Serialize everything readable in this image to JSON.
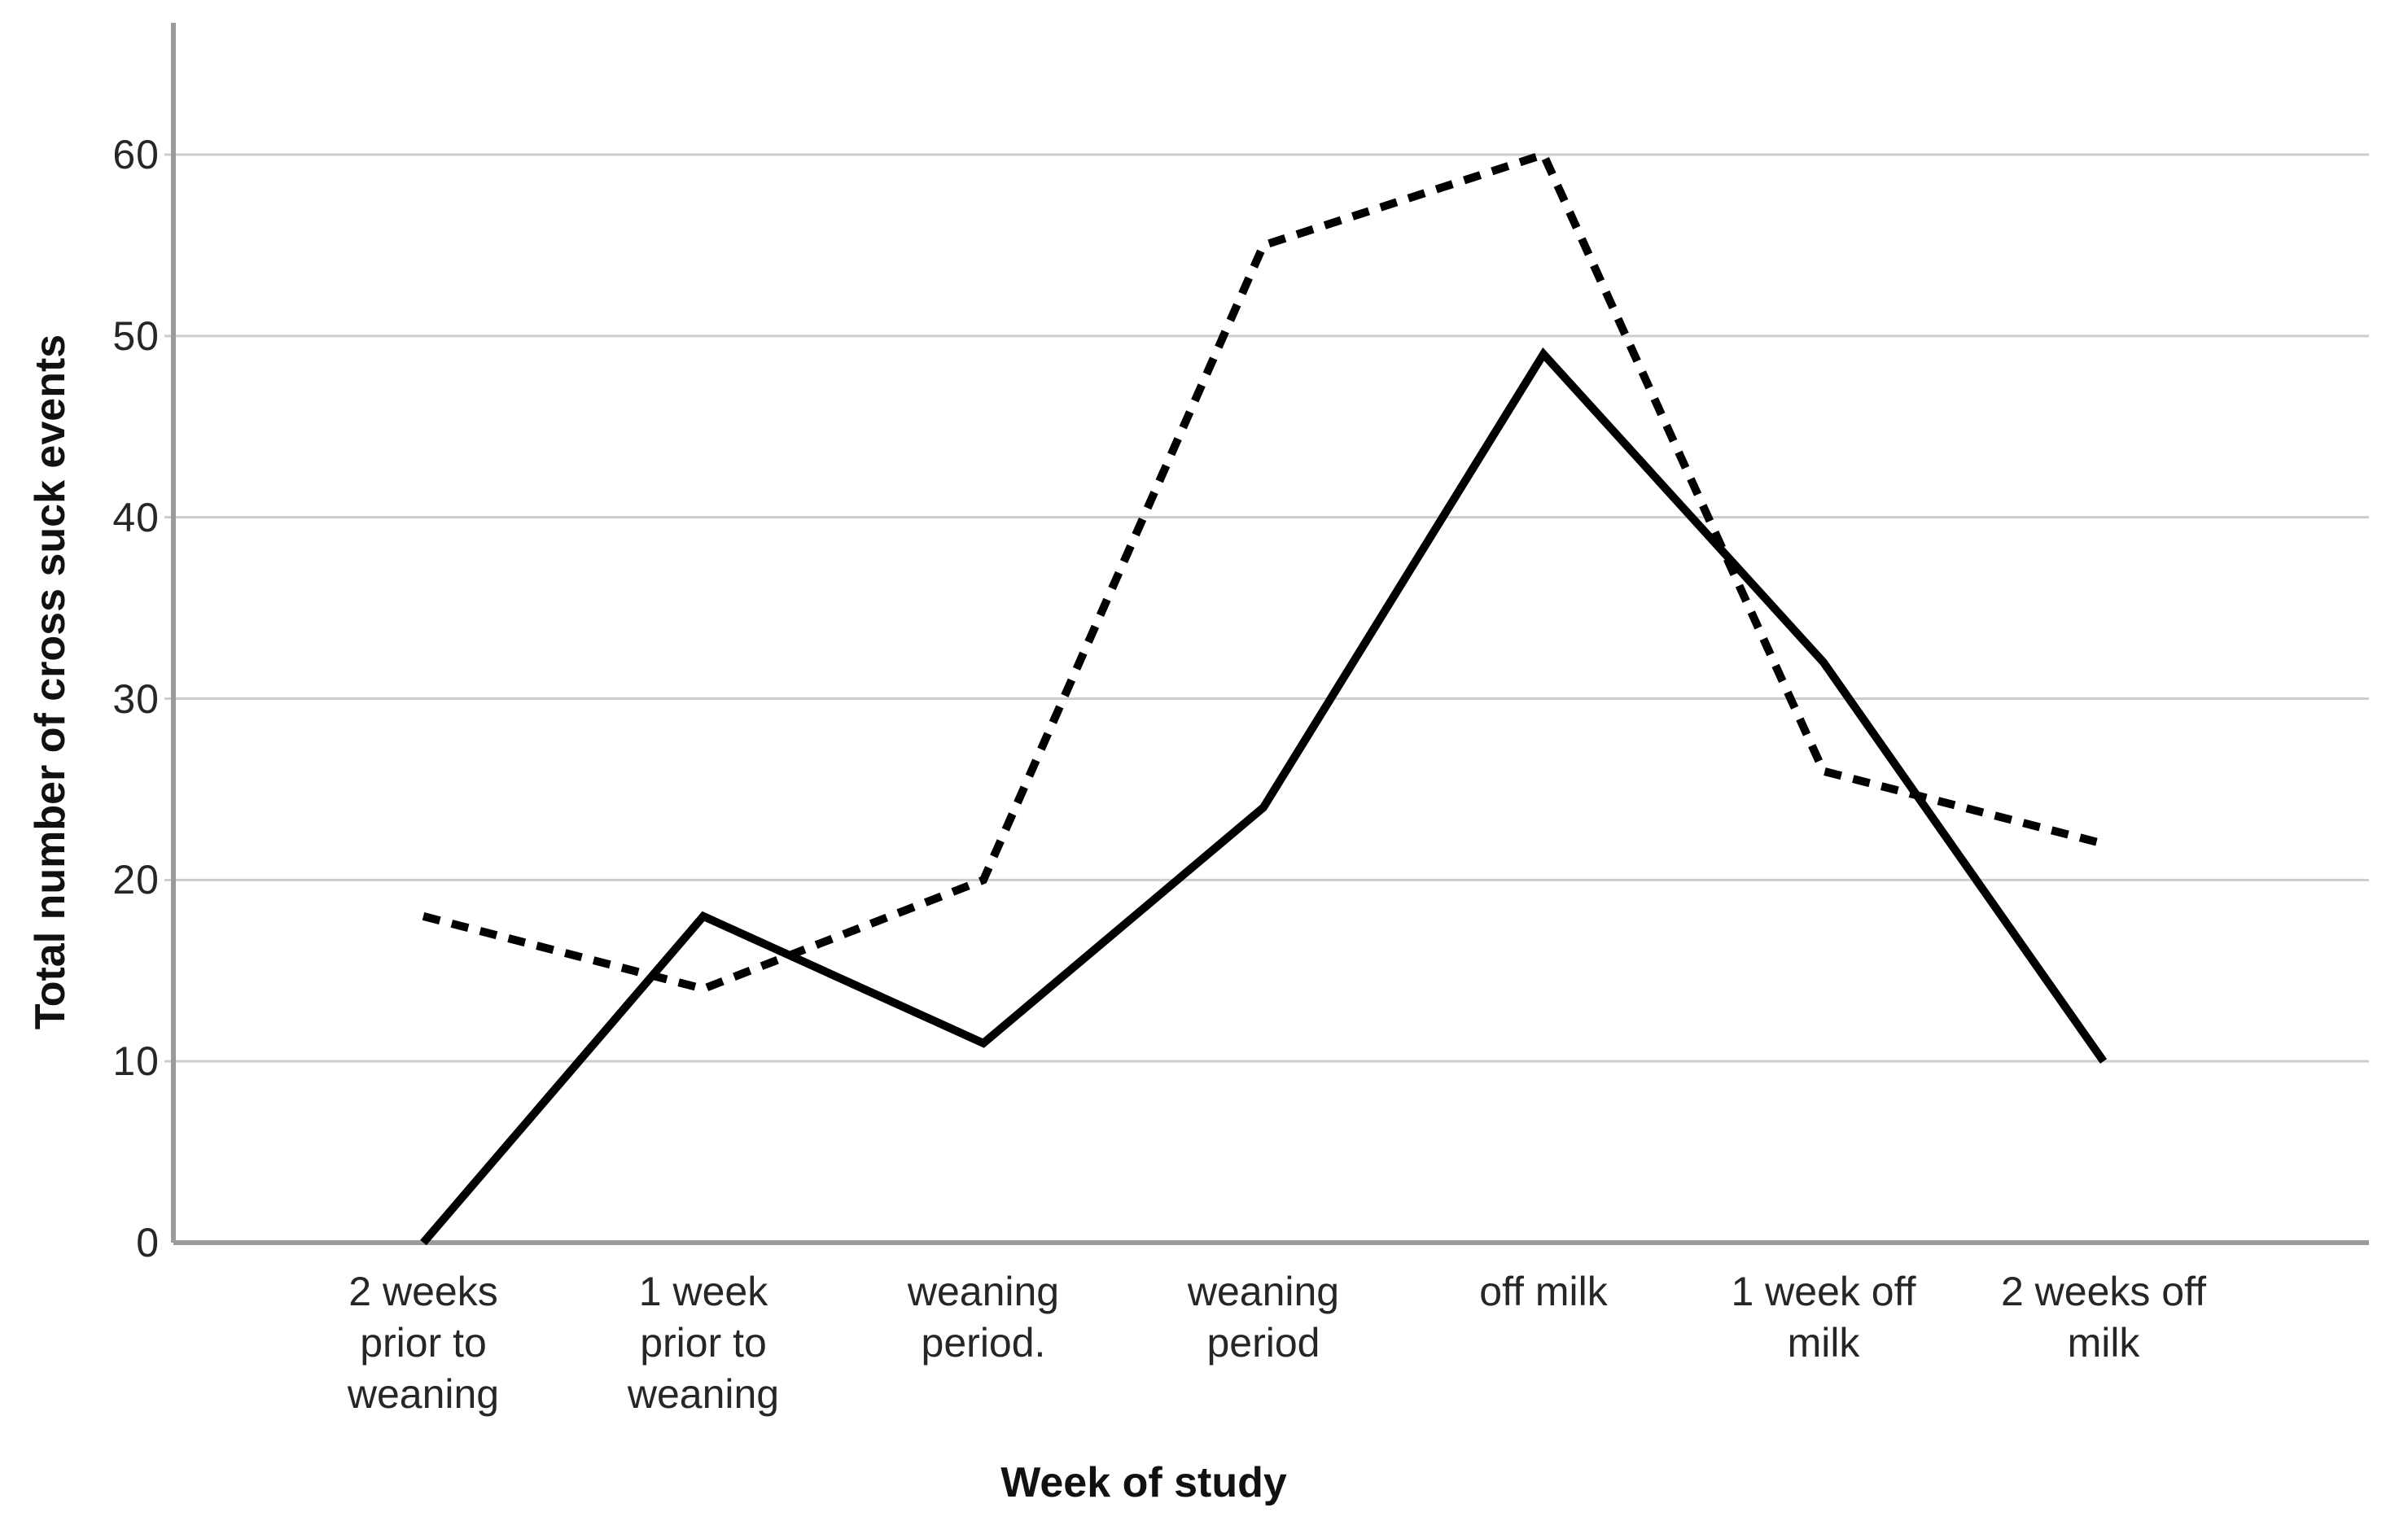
{
  "chart_data": {
    "type": "line",
    "title": "",
    "xlabel": "Week of study",
    "ylabel": "Total number of cross suck events",
    "categories": [
      "2 weeks prior to weaning",
      "1 week prior to weaning",
      "weaning period.",
      "weaning period",
      "off milk",
      "1 week off milk",
      "2 weeks off milk"
    ],
    "category_tick_lines": [
      [
        "2 weeks",
        "prior to",
        "weaning"
      ],
      [
        "1 week",
        "prior to",
        "weaning"
      ],
      [
        "weaning",
        "period."
      ],
      [
        "weaning",
        "period"
      ],
      [
        "off milk"
      ],
      [
        "1 week off",
        "milk"
      ],
      [
        "2 weeks off",
        "milk"
      ]
    ],
    "series": [
      {
        "name": "solid-line-group",
        "style": "solid",
        "color": "#000000",
        "values": [
          0,
          18,
          11,
          24,
          49,
          32,
          10
        ]
      },
      {
        "name": "dashed-line-group",
        "style": "dashed",
        "color": "#000000",
        "values": [
          18,
          14,
          20,
          55,
          60,
          26,
          22
        ]
      }
    ],
    "y_ticks": [
      0,
      10,
      20,
      30,
      40,
      50,
      60
    ],
    "y_tick_labels": [
      "0",
      "10",
      "20",
      "30",
      "40",
      "50",
      "60"
    ],
    "ylim": [
      0,
      67
    ],
    "grid": "horizontal-gridlines-on",
    "legend": "none",
    "colors": {
      "line": "#000000",
      "axis": "#9b9b9b",
      "gridline": "#cdcdcd",
      "tick_text": "#262626",
      "title_text": "#111111",
      "background": "#ffffff"
    }
  }
}
